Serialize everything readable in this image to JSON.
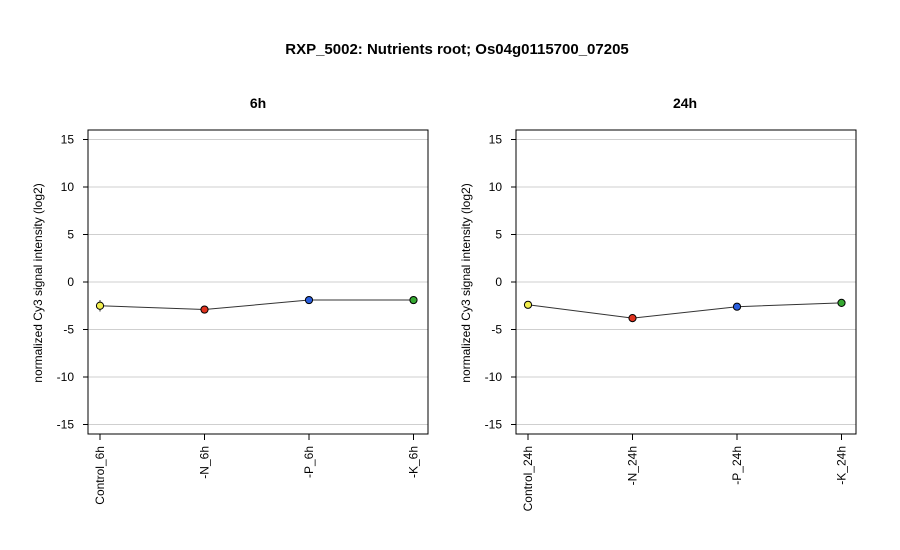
{
  "title": "RXP_5002: Nutrients root; Os04g0115700_07205",
  "chart_data": [
    {
      "type": "line",
      "title": "6h",
      "xlabel": "",
      "ylabel": "normalized Cy3 signal intensity (log2)",
      "ylim": [
        -16,
        16
      ],
      "yticks": [
        -15,
        -10,
        -5,
        0,
        5,
        10,
        15
      ],
      "grid": true,
      "categories": [
        "Control_6h",
        "-N_6h",
        "-P_6h",
        "-K_6h"
      ],
      "values": [
        -2.5,
        -2.9,
        -1.9,
        -1.9
      ],
      "errors": [
        0.6,
        0.2,
        0.4,
        0.2
      ],
      "point_colors": [
        "#f2ee4e",
        "#e0321e",
        "#2a5fe0",
        "#36a832"
      ]
    },
    {
      "type": "line",
      "title": "24h",
      "xlabel": "",
      "ylabel": "normalized Cy3 signal intensity (log2)",
      "ylim": [
        -16,
        16
      ],
      "yticks": [
        -15,
        -10,
        -5,
        0,
        5,
        10,
        15
      ],
      "grid": true,
      "categories": [
        "Control_24h",
        "-N_24h",
        "-P_24h",
        "-K_24h"
      ],
      "values": [
        -2.4,
        -3.8,
        -2.6,
        -2.2
      ],
      "errors": [
        0.2,
        0.2,
        0.2,
        0.2
      ],
      "point_colors": [
        "#f2ee4e",
        "#e0321e",
        "#2a5fe0",
        "#36a832"
      ]
    }
  ]
}
